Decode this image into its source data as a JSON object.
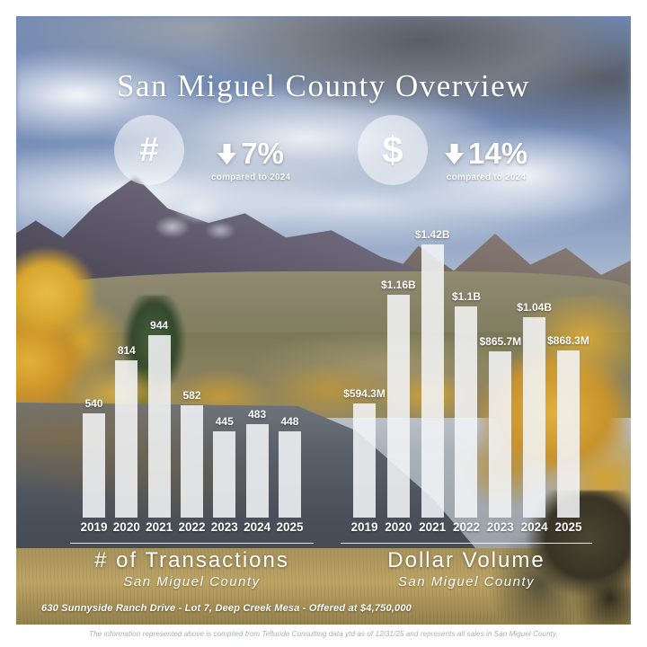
{
  "title": "San Miguel County Overview",
  "stats": [
    {
      "icon": "#",
      "icon_name": "hash-icon",
      "direction": "down",
      "change": "7%",
      "note": "compared to 2024"
    },
    {
      "icon": "$",
      "icon_name": "dollar-icon",
      "direction": "down",
      "change": "14%",
      "note": "compared to 2024"
    }
  ],
  "chart_data": [
    {
      "type": "bar",
      "title": "# of Transactions",
      "subtitle": "San Miguel County",
      "categories": [
        "2019",
        "2020",
        "2021",
        "2022",
        "2023",
        "2024",
        "2025"
      ],
      "values": [
        540,
        814,
        944,
        582,
        445,
        483,
        448
      ],
      "labels": [
        "540",
        "814",
        "944",
        "582",
        "445",
        "483",
        "448"
      ],
      "ylabel": "",
      "xlabel": "",
      "ylim": [
        0,
        944
      ],
      "grid": false,
      "legend": "none"
    },
    {
      "type": "bar",
      "title": "Dollar Volume",
      "subtitle": "San Miguel County",
      "categories": [
        "2019",
        "2020",
        "2021",
        "2022",
        "2023",
        "2024",
        "2025"
      ],
      "values": [
        594.3,
        1160,
        1420,
        1100,
        865.7,
        1040,
        868.3
      ],
      "values_unit": "USD millions",
      "labels": [
        "$594.3M",
        "$1.16B",
        "$1.42B",
        "$1.1B",
        "$865.7M",
        "$1.04B",
        "$868.3M"
      ],
      "ylabel": "",
      "xlabel": "",
      "ylim": [
        0,
        1420
      ],
      "grid": false,
      "legend": "none"
    }
  ],
  "property_caption": "630 Sunnyside Ranch Drive - Lot 7, Deep Creek Mesa - Offered at $4,750,000",
  "footer": "The information represented above is compiled from Telluride Consulting data ytd as of 12/31/25 and represents all sales in San Miguel County.",
  "colors": {
    "bar_fill": "rgba(242,244,246,0.88)",
    "text": "#ffffff",
    "footer_text": "#a9aeb4"
  }
}
